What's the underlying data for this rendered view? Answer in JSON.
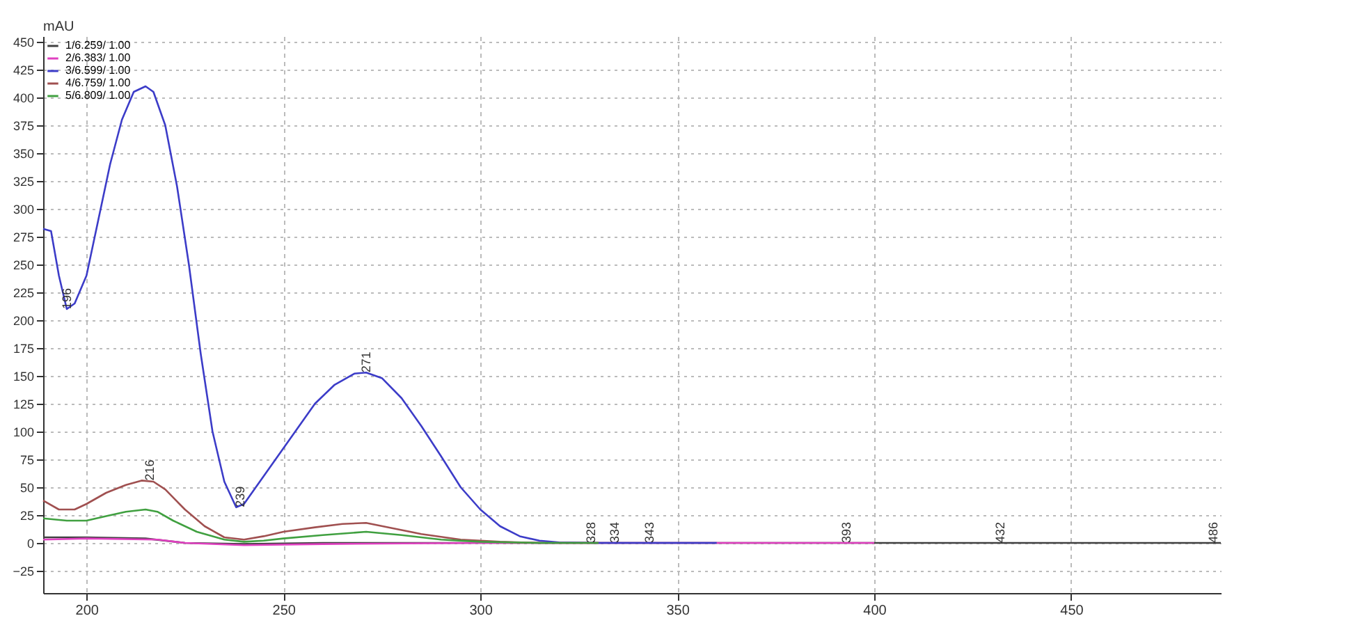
{
  "chart_data": {
    "type": "line",
    "ylabel": "mAU",
    "xlim": [
      189,
      488
    ],
    "ylim": [
      -45,
      455
    ],
    "xticks": [
      200,
      250,
      300,
      350,
      400,
      450
    ],
    "yticks": [
      -25,
      0,
      25,
      50,
      75,
      100,
      125,
      150,
      175,
      200,
      225,
      250,
      275,
      300,
      325,
      350,
      375,
      400,
      425,
      450
    ],
    "grid": true,
    "legend": "top left",
    "marker": "none",
    "line_style": "solid",
    "series": [
      {
        "name": "1/6.259/ 1.00",
        "color": "#404040",
        "x": [
          189,
          200,
          215,
          225,
          240,
          260,
          300,
          400,
          488
        ],
        "values": [
          5,
          5,
          4,
          0,
          -1,
          0,
          0,
          0,
          0
        ]
      },
      {
        "name": "2/6.383/ 1.00",
        "color": "#e040c0",
        "x": [
          189,
          200,
          218,
          225,
          240,
          260,
          300,
          400
        ],
        "values": [
          3,
          4,
          3,
          0,
          -2,
          -1,
          0,
          0
        ]
      },
      {
        "name": "3/6.599/ 1.00",
        "color": "#3c3cc8",
        "x": [
          189,
          191,
          193,
          195,
          197,
          200,
          203,
          206,
          209,
          212,
          215,
          217,
          220,
          223,
          226,
          229,
          232,
          235,
          238,
          240,
          243,
          248,
          253,
          258,
          263,
          268,
          271,
          275,
          280,
          285,
          290,
          295,
          300,
          305,
          310,
          315,
          320,
          330,
          360
        ],
        "values": [
          282,
          280,
          240,
          210,
          215,
          240,
          290,
          340,
          380,
          405,
          410,
          405,
          375,
          320,
          250,
          170,
          100,
          55,
          32,
          35,
          50,
          75,
          100,
          125,
          142,
          152,
          153,
          148,
          130,
          105,
          78,
          50,
          30,
          15,
          6,
          2,
          0.5,
          0,
          0
        ]
      },
      {
        "name": "4/6.759/ 1.00",
        "color": "#a05050",
        "x": [
          189,
          193,
          197,
          200,
          205,
          210,
          214,
          217,
          220,
          225,
          230,
          235,
          240,
          245,
          250,
          258,
          265,
          271,
          278,
          285,
          295,
          305,
          315,
          330
        ],
        "values": [
          38,
          30,
          30,
          35,
          45,
          52,
          56,
          55,
          48,
          30,
          15,
          5,
          3,
          6,
          10,
          14,
          17,
          18,
          13,
          8,
          3,
          1,
          0,
          0
        ]
      },
      {
        "name": "5/6.809/ 1.00",
        "color": "#40a040",
        "x": [
          189,
          195,
          200,
          205,
          210,
          215,
          218,
          222,
          228,
          235,
          240,
          245,
          250,
          260,
          271,
          280,
          290,
          300,
          315,
          330
        ],
        "values": [
          22,
          20,
          20,
          24,
          28,
          30,
          28,
          20,
          10,
          3,
          1,
          2,
          4,
          7,
          10,
          7,
          3,
          1,
          0,
          0
        ]
      }
    ],
    "annotations": [
      {
        "text": "196",
        "x": 195,
        "y": 210
      },
      {
        "text": "216",
        "x": 216,
        "y": 56
      },
      {
        "text": "239",
        "x": 239,
        "y": 32
      },
      {
        "text": "271",
        "x": 271,
        "y": 153
      },
      {
        "text": "328",
        "x": 328,
        "y": 0
      },
      {
        "text": "334",
        "x": 334,
        "y": 0
      },
      {
        "text": "343",
        "x": 343,
        "y": 0
      },
      {
        "text": "393",
        "x": 393,
        "y": 0
      },
      {
        "text": "432",
        "x": 432,
        "y": 0
      },
      {
        "text": "486",
        "x": 486,
        "y": 0
      }
    ]
  }
}
